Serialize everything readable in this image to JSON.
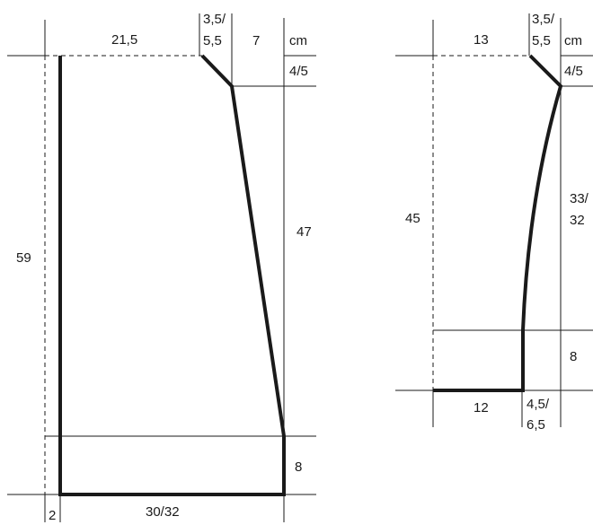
{
  "unit": "cm",
  "left_piece": {
    "dims": {
      "width_top": "21,5",
      "shoulder_slope_a": "3,5/",
      "shoulder_slope_b": "5,5",
      "neck_width": "7",
      "unit": "cm",
      "shoulder_drop": "4/5",
      "side_length": "47",
      "total_length": "59",
      "hem_depth": "8",
      "hem_width": "30/32",
      "edge_offset": "2"
    }
  },
  "right_piece": {
    "dims": {
      "width_top": "13",
      "shoulder_slope_a": "3,5/",
      "shoulder_slope_b": "5,5",
      "unit": "cm",
      "shoulder_drop": "4/5",
      "curve_length_a": "33/",
      "curve_length_b": "32",
      "total_length": "45",
      "hem_depth": "8",
      "hem_width": "12",
      "cuff_a": "4,5/",
      "cuff_b": "6,5"
    }
  }
}
